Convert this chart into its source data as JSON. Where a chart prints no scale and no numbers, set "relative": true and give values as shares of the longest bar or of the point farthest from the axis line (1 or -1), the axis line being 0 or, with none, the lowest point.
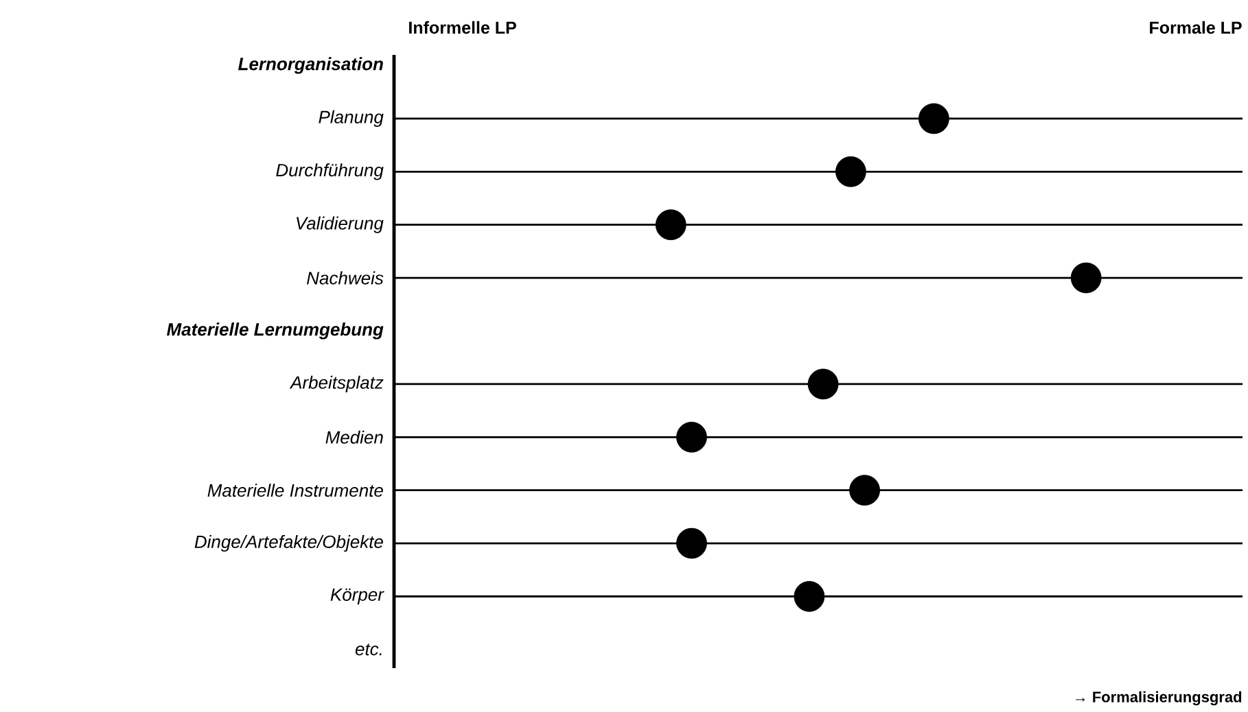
{
  "chart_data": {
    "type": "scatter",
    "orientation": "horizontal",
    "relative": true,
    "marker": "circle",
    "grid": "y",
    "xlabel": "→ Formalisierungsgrad",
    "annotations": [
      "Informelle LP",
      "Formale LP"
    ],
    "categories": [
      "**Lernorganisation**",
      "Planung",
      "Durchführung",
      "Validierung",
      "Nachweis",
      "**Materielle Lernumgebung**",
      "Arbeitsplatz",
      "Medien",
      "Materielle Instrumente",
      "Dinge/Artefakte/Objekte",
      "Körper",
      "etc."
    ],
    "series": [
      {
        "color": "#000000",
        "values": [
          null,
          0.78,
          0.66,
          0.4,
          1,
          null,
          0.62,
          0.43,
          0.68,
          0.43,
          0.6,
          null
        ]
      }
    ]
  }
}
